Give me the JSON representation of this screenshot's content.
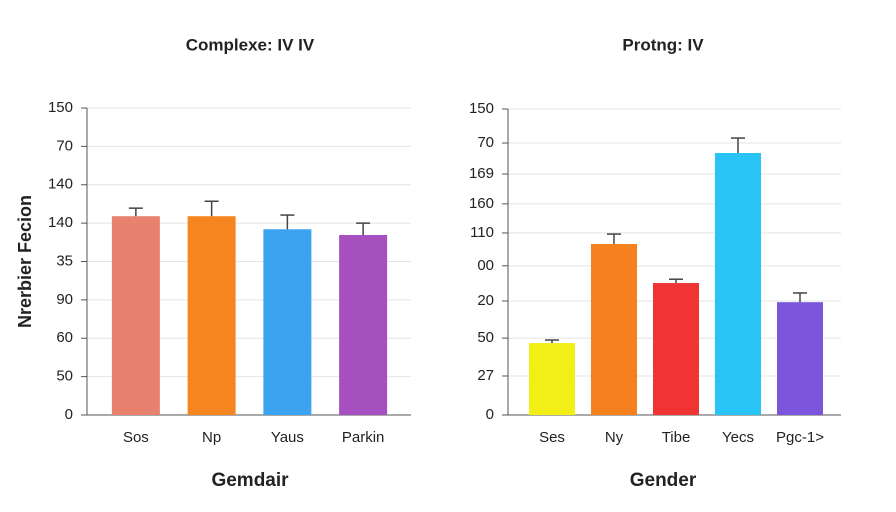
{
  "chart_data": [
    {
      "type": "bar",
      "title": "Complexe: IV IV",
      "x_label": "Gemdair",
      "y_label": "Nrerbier Fecion",
      "categories": [
        "Sos",
        "Np",
        "Yaus",
        "Parkin"
      ],
      "values": [
        5.18,
        5.18,
        4.84,
        4.69
      ],
      "errors": [
        0.21,
        0.39,
        0.37,
        0.31
      ],
      "colors": [
        "#e8826e",
        "#f5861f",
        "#3ba3f0",
        "#a64fbf"
      ],
      "ylim": [
        0,
        8
      ],
      "yticks": [
        0,
        {
          "value": 1,
          "label": "50"
        },
        {
          "value": 2,
          "label": "60"
        },
        {
          "value": 3,
          "label": "90"
        },
        {
          "value": 4,
          "label": "35"
        },
        {
          "value": 5,
          "label": "140"
        },
        {
          "value": 6,
          "label": "140"
        },
        {
          "value": 7,
          "label": "70"
        },
        {
          "value": 8,
          "label": "150"
        }
      ],
      "grid": true
    },
    {
      "type": "bar",
      "title": "Protng: IV",
      "x_label": "Gender",
      "categories": [
        "Ses",
        "Ny",
        "Tibe",
        "Yecs",
        "Pgc-1>"
      ],
      "values": [
        1.88,
        4.47,
        3.45,
        6.85,
        2.95
      ],
      "errors": [
        0.08,
        0.26,
        0.1,
        0.39,
        0.24
      ],
      "colors": [
        "#f2ef16",
        "#f5801e",
        "#f03434",
        "#27c4f5",
        "#7b55dc"
      ],
      "ylim": [
        0,
        8
      ],
      "yticks": [
        0,
        {
          "value": 1.02,
          "label": "27"
        },
        {
          "value": 2.01,
          "label": "50"
        },
        {
          "value": 2.98,
          "label": "20"
        },
        {
          "value": 3.9,
          "label": "00"
        },
        {
          "value": 4.76,
          "label": "110"
        },
        {
          "value": 5.52,
          "label": "160"
        },
        {
          "value": 6.3,
          "label": "169"
        },
        {
          "value": 7.11,
          "label": "70"
        },
        {
          "value": 8,
          "label": "150"
        }
      ],
      "grid": true
    }
  ]
}
